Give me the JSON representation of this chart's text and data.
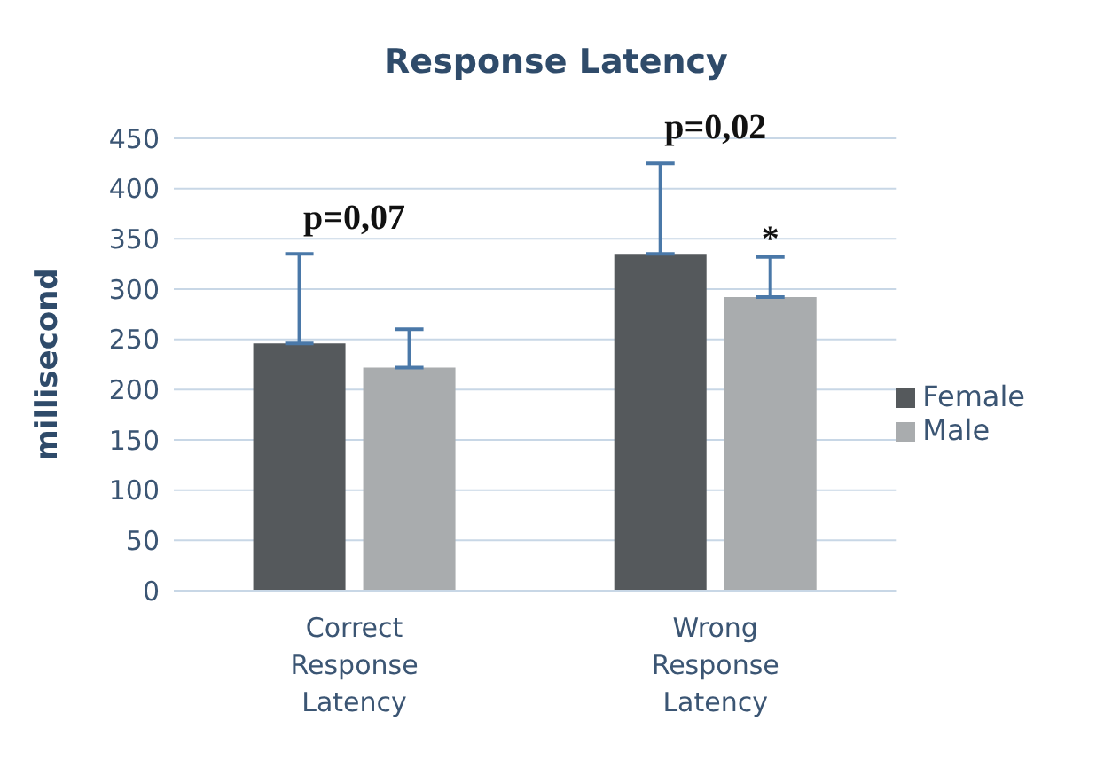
{
  "chart_data": {
    "type": "bar",
    "title": "Response Latency",
    "ylabel": "millisecond",
    "categories": [
      "Correct Response Latency",
      "Wrong Response Latency"
    ],
    "series": [
      {
        "name": "Female",
        "color": "#55595c",
        "values": [
          246,
          335
        ],
        "errors": [
          [
            246,
            335
          ],
          [
            335,
            425
          ]
        ]
      },
      {
        "name": "Male",
        "color": "#a9acae",
        "values": [
          222,
          292
        ],
        "errors": [
          [
            222,
            260
          ],
          [
            292,
            332
          ]
        ]
      }
    ],
    "ylim": [
      0,
      450
    ],
    "yticks": [
      0,
      50,
      100,
      150,
      200,
      250,
      300,
      350,
      400,
      450
    ],
    "grid": "y",
    "legend": "right",
    "annotations": [
      "p=0,07",
      "p=0,02",
      "*"
    ]
  }
}
